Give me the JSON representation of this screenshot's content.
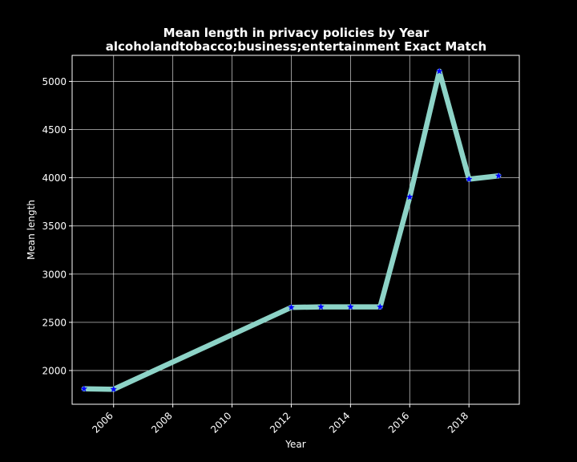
{
  "chart_data": {
    "type": "line",
    "title": "Mean length in privacy policies by Year",
    "subtitle": "alcoholandtobacco;business;entertainment Exact Match",
    "xlabel": "Year",
    "ylabel": "Mean length",
    "xlim": [
      2004.6,
      2019.7
    ],
    "ylim": [
      1650,
      5270
    ],
    "xticks": [
      2006,
      2008,
      2010,
      2012,
      2014,
      2016,
      2018
    ],
    "yticks": [
      2000,
      2500,
      3000,
      3500,
      4000,
      4500,
      5000
    ],
    "grid": true,
    "series": [
      {
        "x": [
          2005,
          2006,
          2012,
          2013,
          2014,
          2015,
          2016,
          2017,
          2018,
          2019
        ],
        "y": [
          1810,
          1805,
          2655,
          2660,
          2660,
          2660,
          3800,
          5105,
          3985,
          4020
        ],
        "line_color": "#8dd3c7",
        "marker_color": "#0000ff",
        "marker": "star"
      }
    ]
  }
}
